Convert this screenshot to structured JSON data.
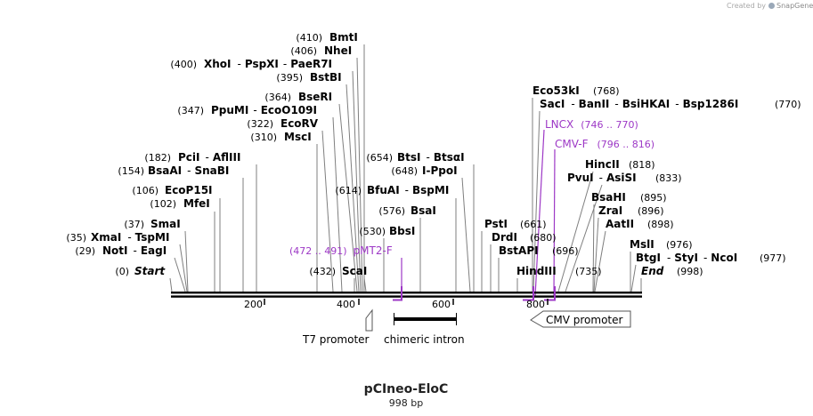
{
  "credit": {
    "text": "Created by",
    "brand": "SnapGene"
  },
  "plasmid": {
    "name": "pCIneo-EloC",
    "length": "998 bp"
  },
  "enzymes": [
    {
      "pos": "(410)",
      "name": "BmtI"
    },
    {
      "pos": "(406)",
      "name": "NheI"
    },
    {
      "pos": "(400)",
      "name": "XhoI",
      "sep1": "-",
      "name2": "PspXI",
      "sep2": "-",
      "name3": "PaeR7I"
    },
    {
      "pos": "(395)",
      "name": "BstBI"
    },
    {
      "pos": "(364)",
      "name": "BseRI"
    },
    {
      "pos": "(347)",
      "name": "PpuMI",
      "sep1": "-",
      "name2": "EcoO109I"
    },
    {
      "pos": "(322)",
      "name": "EcoRV"
    },
    {
      "pos": "(310)",
      "name": "MscI"
    },
    {
      "pos": "(182)",
      "name": "PciI",
      "sep1": "-",
      "name2": "AflIII"
    },
    {
      "pos": "(154)",
      "name": "BsaAI",
      "sep1": "-",
      "name2": "SnaBI"
    },
    {
      "pos": "(106)",
      "name": "EcoP15I"
    },
    {
      "pos": "(102)",
      "name": "MfeI"
    },
    {
      "pos": "(37)",
      "name": "SmaI"
    },
    {
      "pos": "(35)",
      "name": "XmaI",
      "sep1": "-",
      "name2": "TspMI"
    },
    {
      "pos": "(29)",
      "name": "NotI",
      "sep1": "-",
      "name2": "EagI"
    },
    {
      "pos": "(0)",
      "name": "Start"
    },
    {
      "pos": "(432)",
      "name": "ScaI"
    },
    {
      "pos": "(654)",
      "name": "BtsI",
      "sep1": "-",
      "name2": "BtsαI"
    },
    {
      "pos": "(648)",
      "name": "I-PpoI"
    },
    {
      "pos": "(614)",
      "name": "BfuAI",
      "sep1": "-",
      "name2": "BspMI"
    },
    {
      "pos": "(576)",
      "name": "BsaI"
    },
    {
      "pos": "(530)",
      "name": "BbsI"
    },
    {
      "pos": "(768)",
      "name": "Eco53kI"
    },
    {
      "pos": "(770)",
      "name": "SacI",
      "sep1": "-",
      "name2": "BanII",
      "sep2": "-",
      "name3": "BsiHKAI",
      "sep3": "-",
      "name4": "Bsp1286I"
    },
    {
      "pos": "(818)",
      "name": "HincII"
    },
    {
      "pos": "(833)",
      "name": "PvuI",
      "sep1": "-",
      "name2": "AsiSI"
    },
    {
      "pos": "(895)",
      "name": "BsaHI"
    },
    {
      "pos": "(896)",
      "name": "ZraI"
    },
    {
      "pos": "(898)",
      "name": "AatII"
    },
    {
      "pos": "(976)",
      "name": "MslI"
    },
    {
      "pos": "(977)",
      "name": "BtgI",
      "sep1": "-",
      "name2": "StyI",
      "sep2": "-",
      "name3": "NcoI"
    },
    {
      "pos": "(998)",
      "name": "End"
    },
    {
      "pos": "(661)",
      "name": "PstI"
    },
    {
      "pos": "(680)",
      "name": "DrdI"
    },
    {
      "pos": "(696)",
      "name": "BstAPI"
    },
    {
      "pos": "(735)",
      "name": "HindIII"
    }
  ],
  "primers": [
    {
      "name": "LNCX",
      "range": "(746 .. 770)"
    },
    {
      "name": "CMV-F",
      "range": "(796 .. 816)"
    },
    {
      "name": "pMT2-F",
      "range": "(472 .. 491)"
    }
  ],
  "ruler": {
    "ticks": [
      "200",
      "400",
      "600",
      "800"
    ]
  },
  "features": [
    {
      "name": "T7 promoter"
    },
    {
      "name": "chimeric intron"
    },
    {
      "name": "CMV promoter"
    }
  ],
  "colors": {
    "primer": "#9d38c6",
    "text": "#000000",
    "line": "#7f7f7f"
  }
}
